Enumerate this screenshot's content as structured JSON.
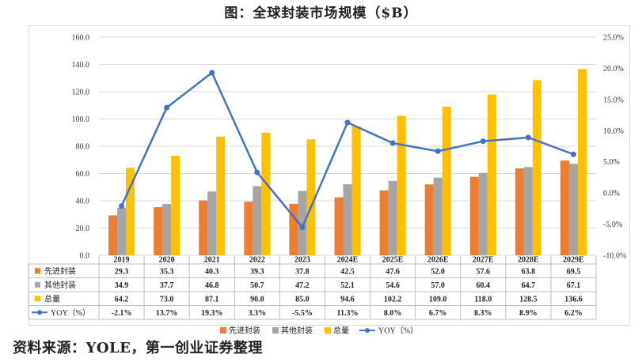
{
  "title": "图：全球封装市场规模（$B）",
  "source": "资料来源：YOLE，第一创业证券整理",
  "chart_data": {
    "type": "bar",
    "categories": [
      "2019",
      "2020",
      "2021",
      "2022",
      "2023",
      "2024E",
      "2025E",
      "2026E",
      "2027E",
      "2028E",
      "2029E"
    ],
    "series": [
      {
        "name": "先进封装",
        "type": "bar",
        "color": "#ED7D31",
        "values": [
          29.3,
          35.3,
          40.3,
          39.3,
          37.8,
          42.5,
          47.6,
          52.0,
          57.6,
          63.8,
          69.5
        ],
        "labels": [
          "29.3",
          "35.3",
          "40.3",
          "39.3",
          "37.8",
          "42.5",
          "47.6",
          "52.0",
          "57.6",
          "63.8",
          "69.5"
        ]
      },
      {
        "name": "其他封装",
        "type": "bar",
        "color": "#A5A5A5",
        "values": [
          34.9,
          37.7,
          46.8,
          50.7,
          47.2,
          52.1,
          54.6,
          57.0,
          60.4,
          64.7,
          67.1
        ],
        "labels": [
          "34.9",
          "37.7",
          "46.8",
          "50.7",
          "47.2",
          "52.1",
          "54.6",
          "57.0",
          "60.4",
          "64.7",
          "67.1"
        ]
      },
      {
        "name": "总量",
        "type": "bar",
        "color": "#FFC000",
        "values": [
          64.2,
          73.0,
          87.1,
          90.0,
          85.0,
          94.6,
          102.2,
          109.0,
          118.0,
          128.5,
          136.6
        ],
        "labels": [
          "64.2",
          "73.0",
          "87.1",
          "90.0",
          "85.0",
          "94.6",
          "102.2",
          "109.0",
          "118.0",
          "128.5",
          "136.6"
        ]
      },
      {
        "name": "YOY（%）",
        "type": "line",
        "axis": "right",
        "color": "#4472C4",
        "values": [
          -2.1,
          13.7,
          19.3,
          3.3,
          -5.5,
          11.3,
          8.0,
          6.7,
          8.3,
          8.9,
          6.2
        ],
        "labels": [
          "-2.1%",
          "13.7%",
          "19.3%",
          "3.3%",
          "-5.5%",
          "11.3%",
          "8.0%",
          "6.7%",
          "8.3%",
          "8.9%",
          "6.2%"
        ]
      }
    ],
    "y_left": {
      "min": 0,
      "max": 160,
      "ticks": [
        "0.0",
        "20.0",
        "40.0",
        "60.0",
        "80.0",
        "100.0",
        "120.0",
        "140.0",
        "160.0"
      ]
    },
    "y_right": {
      "min": -10,
      "max": 25,
      "ticks": [
        "-10.0%",
        "-5.0%",
        "0.0%",
        "5.0%",
        "10.0%",
        "15.0%",
        "20.0%",
        "25.0%"
      ]
    },
    "grid": true,
    "legend": "bottom",
    "data_table": true
  }
}
